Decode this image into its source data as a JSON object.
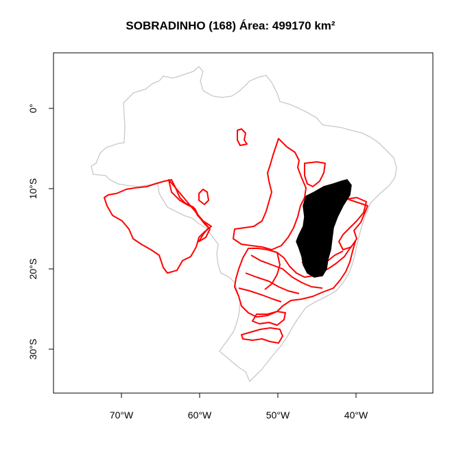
{
  "title": "SOBRADINHO (168) Área: 499170 km²",
  "map": {
    "x_ticks": [
      {
        "lon": -70,
        "label": "70°W"
      },
      {
        "lon": -60,
        "label": "60°W"
      },
      {
        "lon": -50,
        "label": "50°W"
      },
      {
        "lon": -40,
        "label": "40°W"
      }
    ],
    "y_ticks": [
      {
        "lat": 0,
        "label": "0°"
      },
      {
        "lat": -10,
        "label": "10°S"
      },
      {
        "lat": -20,
        "label": "20°S"
      },
      {
        "lat": -30,
        "label": "30°S"
      }
    ],
    "country_outline_color": "#c8c8c8",
    "basin_outline_color": "#ff0000",
    "highlight_fill_color": "#000000"
  }
}
